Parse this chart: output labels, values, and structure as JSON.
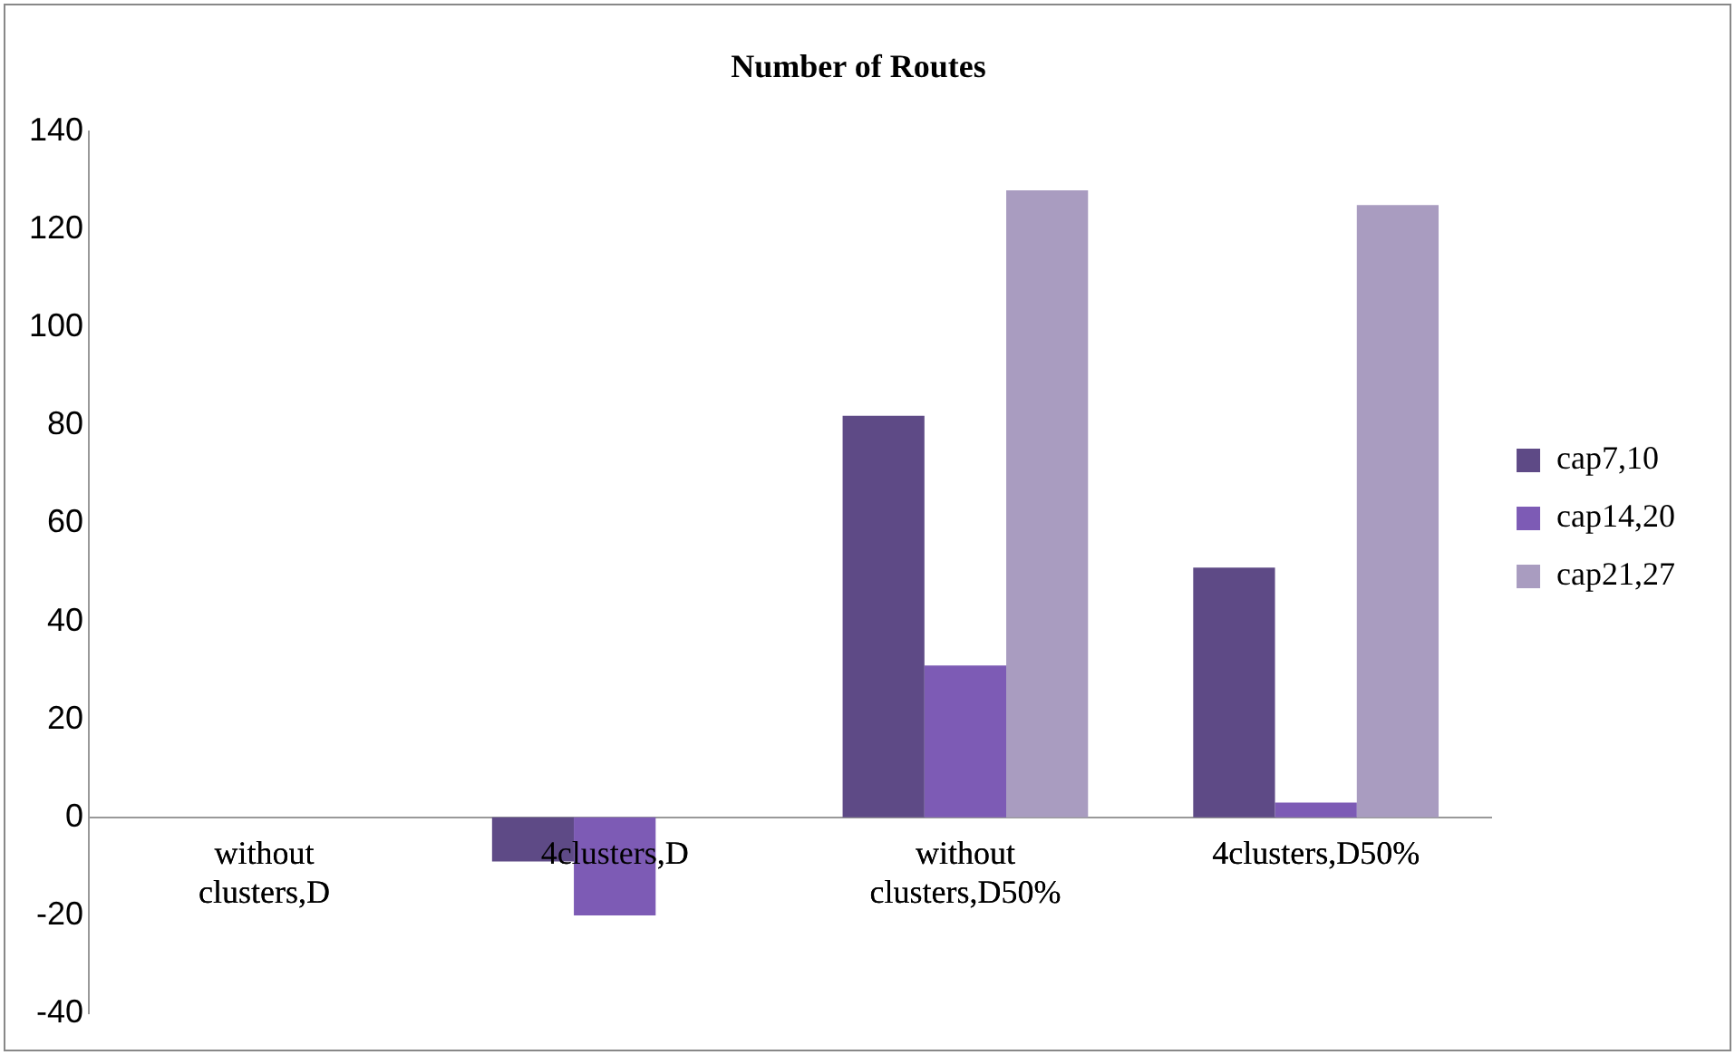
{
  "chart_data": {
    "type": "bar",
    "title": "Number of Routes",
    "categories": [
      "without clusters,D",
      "4clusters,D",
      "without clusters,D50%",
      "4clusters,D50%"
    ],
    "series": [
      {
        "name": "cap7,10",
        "color": "#5e4a86",
        "values": [
          0,
          -9,
          82,
          51
        ]
      },
      {
        "name": "cap14,20",
        "color": "#7d5bb5",
        "values": [
          0,
          -20,
          31,
          3
        ]
      },
      {
        "name": "cap21,27",
        "color": "#a99cc0",
        "values": [
          0,
          null,
          128,
          125
        ]
      }
    ],
    "ylim": [
      -40,
      140
    ],
    "yticks": [
      -40,
      -20,
      0,
      20,
      40,
      60,
      80,
      100,
      120,
      140
    ],
    "grid": false,
    "legend": "right"
  }
}
